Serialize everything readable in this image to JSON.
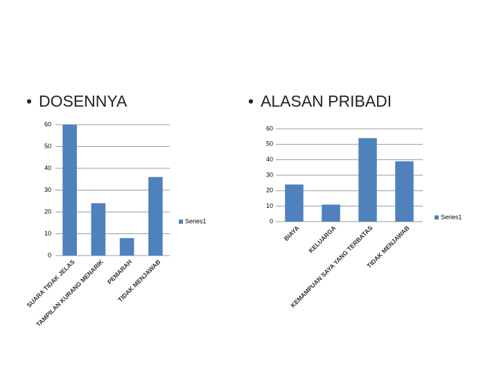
{
  "chart_data": [
    {
      "type": "bar",
      "title": "DOSENNYA",
      "categories": [
        "SUARA TIDAK JELAS",
        "TAMPILAN KURANG MENARIK",
        "PEMARAH",
        "TIDAK MENJAWAB"
      ],
      "series": [
        {
          "name": "Series1",
          "color": "#4f81bd",
          "values": [
            60,
            24,
            8,
            36
          ]
        }
      ],
      "ylim": [
        0,
        60
      ],
      "yticks": [
        0,
        10,
        20,
        30,
        40,
        50,
        60
      ],
      "grid": true,
      "legend": "right"
    },
    {
      "type": "bar",
      "title": "ALASAN PRIBADI",
      "categories": [
        "BIAYA",
        "KELUARGA",
        "KEMAMPUAN SAYA YANG TERBATAS",
        "TIDAK MENJAWAB"
      ],
      "series": [
        {
          "name": "Series1",
          "color": "#4f81bd",
          "values": [
            24,
            11,
            54,
            39
          ]
        }
      ],
      "ylim": [
        0,
        60
      ],
      "yticks": [
        0,
        10,
        20,
        30,
        40,
        50,
        60
      ],
      "grid": true,
      "legend": "right"
    }
  ]
}
